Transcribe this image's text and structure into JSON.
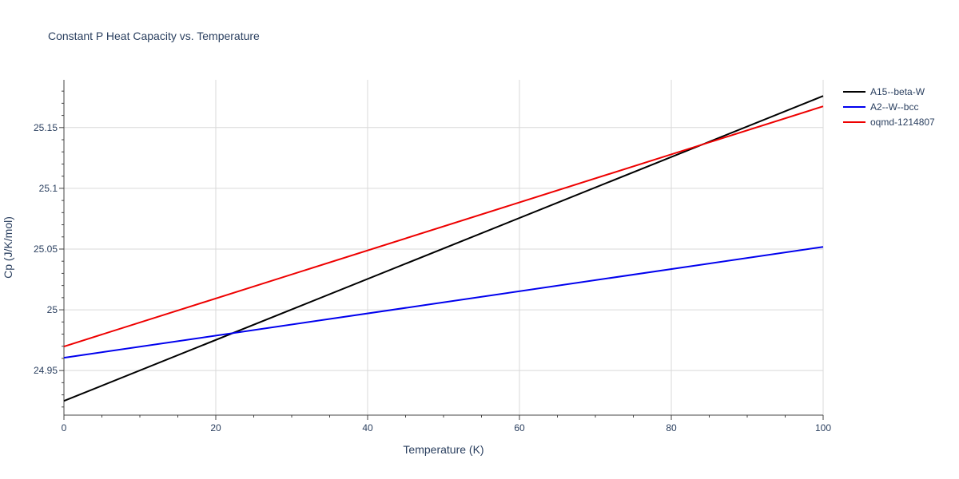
{
  "chart_data": {
    "type": "line",
    "title": "Constant P Heat Capacity vs. Temperature",
    "xlabel": "Temperature (K)",
    "ylabel": "Cp (J/K/mol)",
    "xlim": [
      0,
      100
    ],
    "ylim": [
      24.9133,
      25.1893
    ],
    "x_ticks": [
      0,
      20,
      40,
      60,
      80,
      100
    ],
    "x_tick_labels": [
      "0",
      "20",
      "40",
      "60",
      "80",
      "100"
    ],
    "y_ticks": [
      24.95,
      25.0,
      25.05,
      25.1,
      25.15
    ],
    "y_tick_labels": [
      "24.95",
      "25",
      "25.05",
      "25.1",
      "25.15"
    ],
    "grid": true,
    "legend_position": "top-right",
    "series": [
      {
        "name": "A15--beta-W",
        "color": "#000000",
        "x": [
          0,
          100
        ],
        "y": [
          24.925,
          25.176
        ]
      },
      {
        "name": "A2--W--bcc",
        "color": "#0000ee",
        "x": [
          0,
          100
        ],
        "y": [
          24.9605,
          25.0518
        ]
      },
      {
        "name": "oqmd-1214807",
        "color": "#ee0000",
        "x": [
          0,
          100
        ],
        "y": [
          24.9698,
          25.1675
        ]
      }
    ]
  }
}
